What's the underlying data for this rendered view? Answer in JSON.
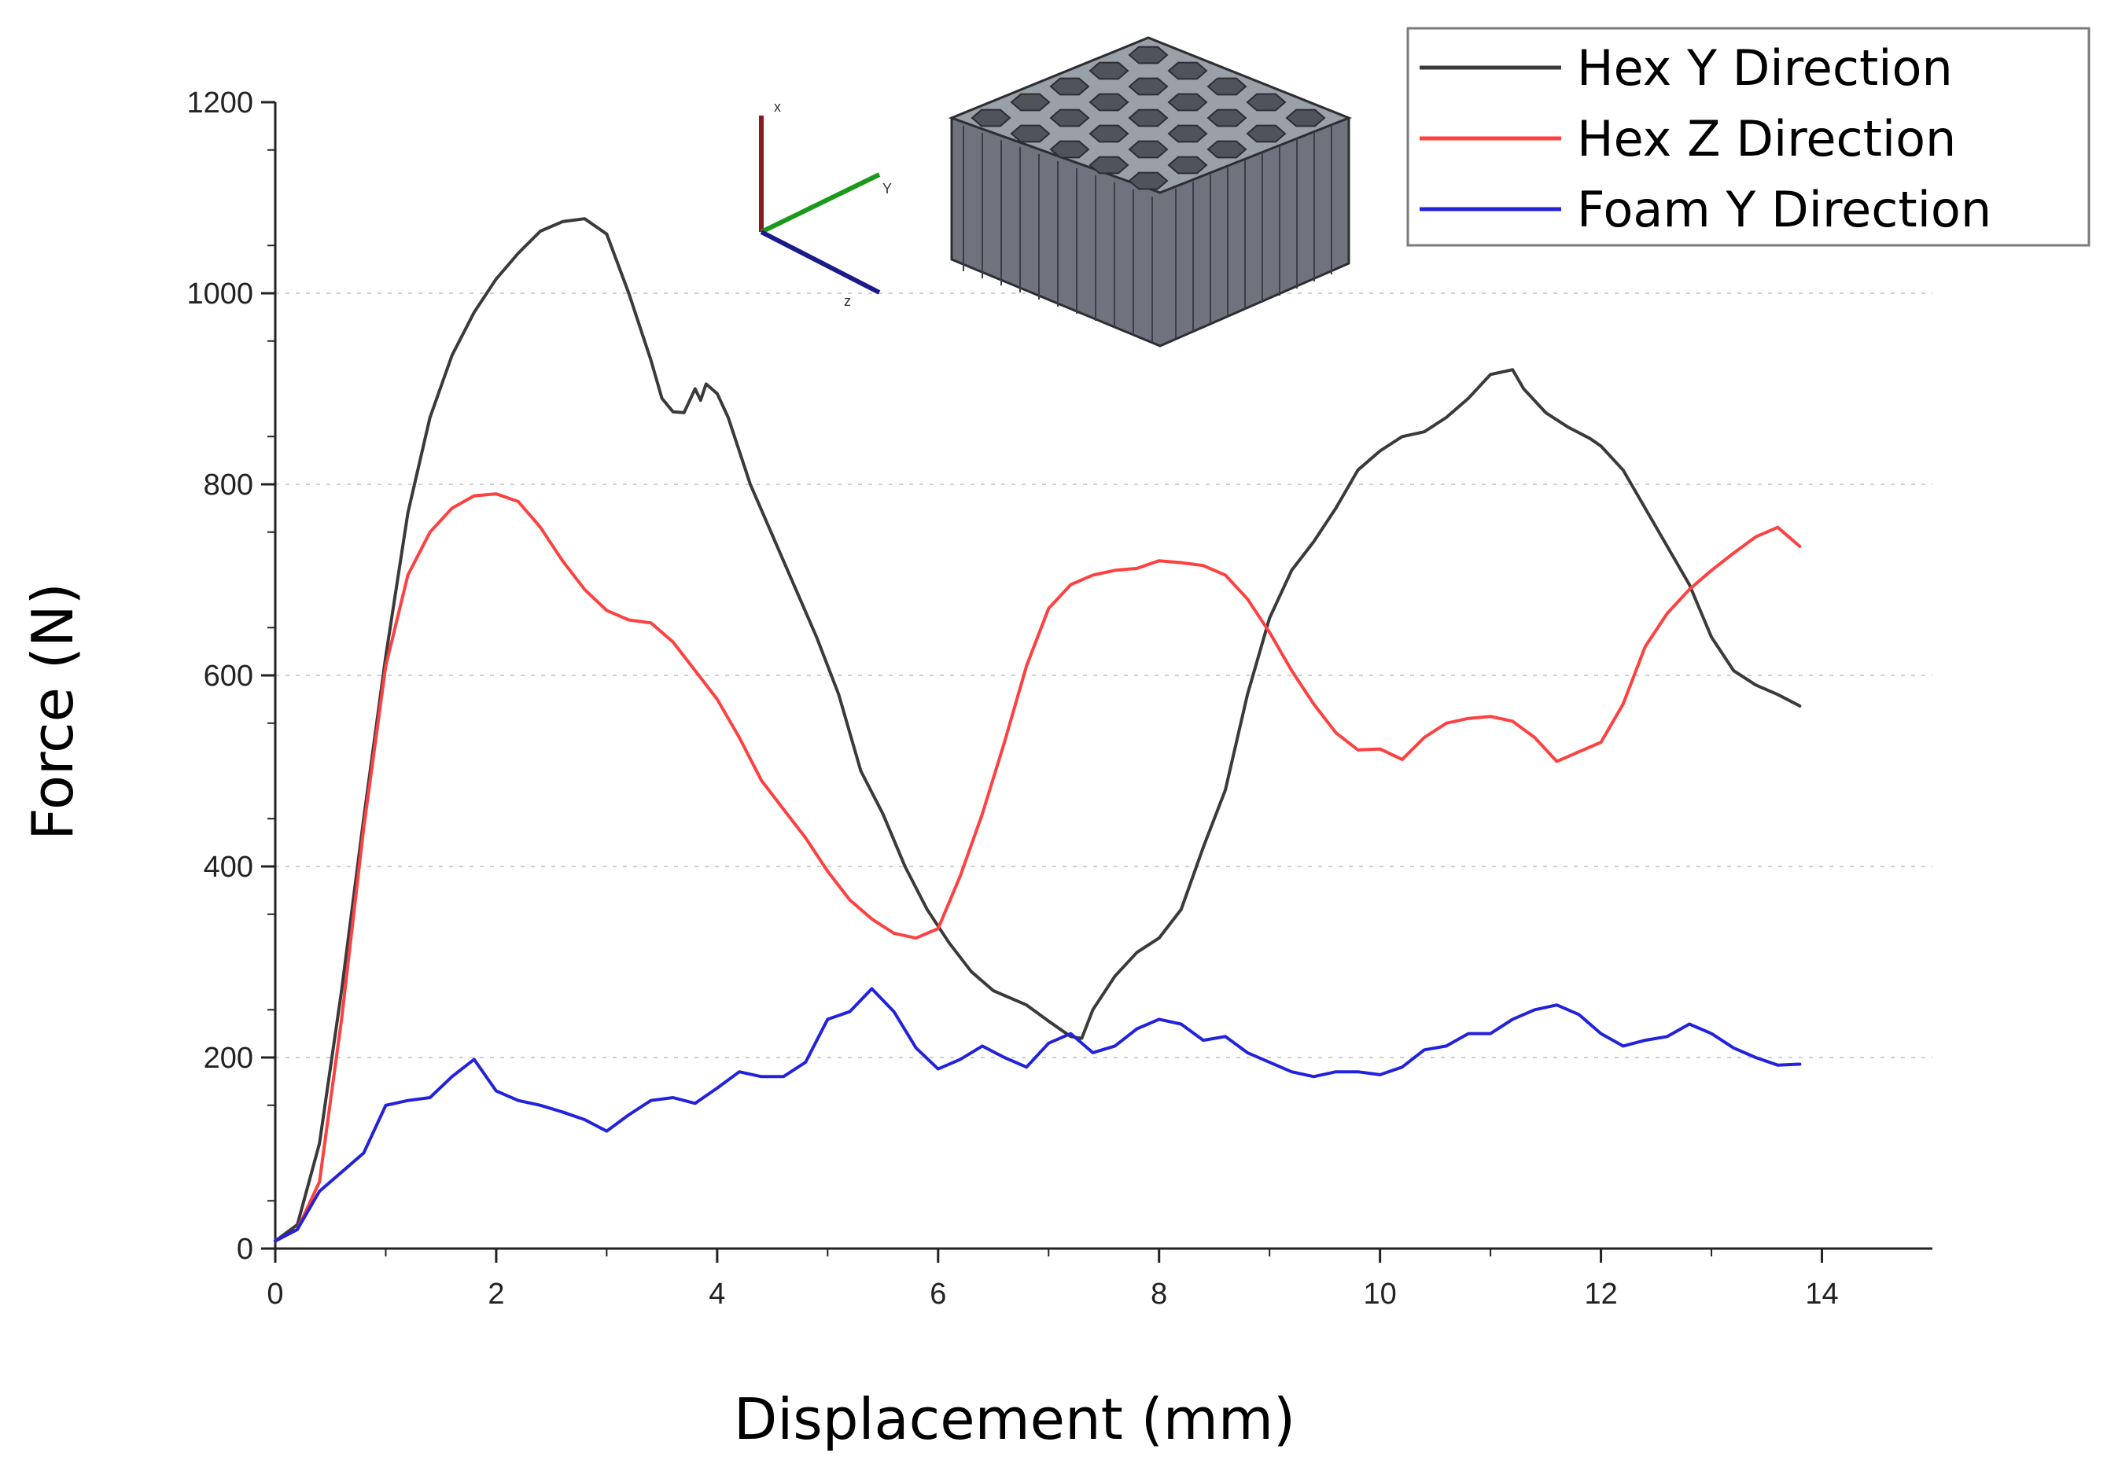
{
  "chart_data": {
    "type": "line",
    "xlabel": "Displacement (mm)",
    "ylabel": "Force (N)",
    "xlim": [
      0,
      15
    ],
    "ylim": [
      0,
      1200
    ],
    "x_ticks": [
      "0",
      "2",
      "4",
      "6",
      "8",
      "10",
      "12",
      "14"
    ],
    "y_ticks": [
      "0",
      "200",
      "400",
      "600",
      "800",
      "1000",
      "1200"
    ],
    "grid": "horizontal-dotted",
    "legend_position": "top-right",
    "series": [
      {
        "name": "Hex Y Direction",
        "color": "#3a3a3a",
        "points": [
          [
            0,
            8
          ],
          [
            0.2,
            25
          ],
          [
            0.4,
            110
          ],
          [
            0.6,
            270
          ],
          [
            0.8,
            450
          ],
          [
            1.0,
            620
          ],
          [
            1.2,
            770
          ],
          [
            1.4,
            870
          ],
          [
            1.6,
            935
          ],
          [
            1.8,
            980
          ],
          [
            2.0,
            1015
          ],
          [
            2.2,
            1042
          ],
          [
            2.4,
            1065
          ],
          [
            2.6,
            1075
          ],
          [
            2.8,
            1078
          ],
          [
            3.0,
            1062
          ],
          [
            3.2,
            1000
          ],
          [
            3.4,
            930
          ],
          [
            3.5,
            890
          ],
          [
            3.6,
            876
          ],
          [
            3.7,
            875
          ],
          [
            3.8,
            900
          ],
          [
            3.85,
            888
          ],
          [
            3.9,
            905
          ],
          [
            4.0,
            895
          ],
          [
            4.1,
            870
          ],
          [
            4.3,
            800
          ],
          [
            4.6,
            720
          ],
          [
            4.9,
            640
          ],
          [
            5.1,
            580
          ],
          [
            5.3,
            500
          ],
          [
            5.5,
            455
          ],
          [
            5.7,
            400
          ],
          [
            5.9,
            355
          ],
          [
            6.1,
            320
          ],
          [
            6.3,
            290
          ],
          [
            6.5,
            270
          ],
          [
            6.8,
            255
          ],
          [
            7.0,
            238
          ],
          [
            7.2,
            222
          ],
          [
            7.3,
            220
          ],
          [
            7.4,
            250
          ],
          [
            7.6,
            285
          ],
          [
            7.8,
            310
          ],
          [
            8.0,
            325
          ],
          [
            8.2,
            355
          ],
          [
            8.4,
            420
          ],
          [
            8.6,
            480
          ],
          [
            8.8,
            580
          ],
          [
            9.0,
            660
          ],
          [
            9.2,
            710
          ],
          [
            9.4,
            740
          ],
          [
            9.6,
            775
          ],
          [
            9.8,
            815
          ],
          [
            10.0,
            835
          ],
          [
            10.2,
            850
          ],
          [
            10.4,
            855
          ],
          [
            10.6,
            870
          ],
          [
            10.8,
            890
          ],
          [
            11.0,
            915
          ],
          [
            11.2,
            920
          ],
          [
            11.3,
            900
          ],
          [
            11.5,
            875
          ],
          [
            11.7,
            860
          ],
          [
            11.9,
            848
          ],
          [
            12.0,
            840
          ],
          [
            12.2,
            815
          ],
          [
            12.4,
            775
          ],
          [
            12.6,
            735
          ],
          [
            12.8,
            695
          ],
          [
            13.0,
            640
          ],
          [
            13.2,
            605
          ],
          [
            13.4,
            590
          ],
          [
            13.6,
            580
          ],
          [
            13.8,
            568
          ]
        ]
      },
      {
        "name": "Hex Z Direction",
        "color": "#ff4040",
        "points": [
          [
            0,
            8
          ],
          [
            0.2,
            20
          ],
          [
            0.4,
            70
          ],
          [
            0.6,
            240
          ],
          [
            0.8,
            440
          ],
          [
            1.0,
            610
          ],
          [
            1.2,
            705
          ],
          [
            1.4,
            750
          ],
          [
            1.6,
            775
          ],
          [
            1.8,
            788
          ],
          [
            2.0,
            790
          ],
          [
            2.2,
            782
          ],
          [
            2.4,
            755
          ],
          [
            2.6,
            720
          ],
          [
            2.8,
            690
          ],
          [
            3.0,
            668
          ],
          [
            3.2,
            658
          ],
          [
            3.4,
            655
          ],
          [
            3.6,
            635
          ],
          [
            3.8,
            605
          ],
          [
            4.0,
            575
          ],
          [
            4.2,
            535
          ],
          [
            4.4,
            490
          ],
          [
            4.6,
            460
          ],
          [
            4.8,
            430
          ],
          [
            5.0,
            395
          ],
          [
            5.2,
            365
          ],
          [
            5.4,
            345
          ],
          [
            5.6,
            330
          ],
          [
            5.8,
            325
          ],
          [
            6.0,
            335
          ],
          [
            6.2,
            390
          ],
          [
            6.4,
            455
          ],
          [
            6.6,
            530
          ],
          [
            6.8,
            610
          ],
          [
            7.0,
            670
          ],
          [
            7.2,
            695
          ],
          [
            7.4,
            705
          ],
          [
            7.6,
            710
          ],
          [
            7.8,
            712
          ],
          [
            8.0,
            720
          ],
          [
            8.2,
            718
          ],
          [
            8.4,
            715
          ],
          [
            8.6,
            705
          ],
          [
            8.8,
            680
          ],
          [
            9.0,
            645
          ],
          [
            9.2,
            605
          ],
          [
            9.4,
            570
          ],
          [
            9.6,
            540
          ],
          [
            9.8,
            522
          ],
          [
            10.0,
            523
          ],
          [
            10.2,
            512
          ],
          [
            10.4,
            535
          ],
          [
            10.6,
            550
          ],
          [
            10.8,
            555
          ],
          [
            11.0,
            557
          ],
          [
            11.2,
            552
          ],
          [
            11.4,
            535
          ],
          [
            11.6,
            510
          ],
          [
            11.8,
            520
          ],
          [
            12.0,
            530
          ],
          [
            12.2,
            570
          ],
          [
            12.4,
            630
          ],
          [
            12.6,
            665
          ],
          [
            12.8,
            690
          ],
          [
            13.0,
            710
          ],
          [
            13.2,
            728
          ],
          [
            13.4,
            745
          ],
          [
            13.6,
            755
          ],
          [
            13.8,
            735
          ]
        ]
      },
      {
        "name": "Foam Y Direction",
        "color": "#2222dd",
        "points": [
          [
            0,
            8
          ],
          [
            0.2,
            20
          ],
          [
            0.4,
            60
          ],
          [
            0.6,
            80
          ],
          [
            0.8,
            100
          ],
          [
            1.0,
            150
          ],
          [
            1.2,
            155
          ],
          [
            1.4,
            158
          ],
          [
            1.6,
            180
          ],
          [
            1.8,
            198
          ],
          [
            2.0,
            165
          ],
          [
            2.2,
            155
          ],
          [
            2.4,
            150
          ],
          [
            2.6,
            143
          ],
          [
            2.8,
            135
          ],
          [
            3.0,
            123
          ],
          [
            3.2,
            140
          ],
          [
            3.4,
            155
          ],
          [
            3.6,
            158
          ],
          [
            3.8,
            152
          ],
          [
            4.0,
            168
          ],
          [
            4.2,
            185
          ],
          [
            4.4,
            180
          ],
          [
            4.6,
            180
          ],
          [
            4.8,
            195
          ],
          [
            5.0,
            240
          ],
          [
            5.2,
            248
          ],
          [
            5.4,
            272
          ],
          [
            5.6,
            248
          ],
          [
            5.8,
            210
          ],
          [
            6.0,
            188
          ],
          [
            6.2,
            198
          ],
          [
            6.4,
            212
          ],
          [
            6.6,
            200
          ],
          [
            6.8,
            190
          ],
          [
            7.0,
            215
          ],
          [
            7.2,
            225
          ],
          [
            7.4,
            205
          ],
          [
            7.6,
            212
          ],
          [
            7.8,
            230
          ],
          [
            8.0,
            240
          ],
          [
            8.2,
            235
          ],
          [
            8.4,
            218
          ],
          [
            8.6,
            222
          ],
          [
            8.8,
            205
          ],
          [
            9.0,
            195
          ],
          [
            9.2,
            185
          ],
          [
            9.4,
            180
          ],
          [
            9.6,
            185
          ],
          [
            9.8,
            185
          ],
          [
            10.0,
            182
          ],
          [
            10.2,
            190
          ],
          [
            10.4,
            208
          ],
          [
            10.6,
            212
          ],
          [
            10.8,
            225
          ],
          [
            11.0,
            225
          ],
          [
            11.2,
            240
          ],
          [
            11.4,
            250
          ],
          [
            11.6,
            255
          ],
          [
            11.8,
            245
          ],
          [
            12.0,
            225
          ],
          [
            12.2,
            212
          ],
          [
            12.4,
            218
          ],
          [
            12.6,
            222
          ],
          [
            12.8,
            235
          ],
          [
            13.0,
            225
          ],
          [
            13.2,
            210
          ],
          [
            13.4,
            200
          ],
          [
            13.6,
            192
          ],
          [
            13.8,
            193
          ]
        ]
      }
    ]
  },
  "inset": {
    "axis_labels": {
      "x": "x",
      "y": "Y",
      "z": "z"
    },
    "axis_colors": {
      "x": "#8b1a1a",
      "y": "#1a9a1a",
      "z": "#1a1a8b"
    },
    "model_name": "hexagonal-honeycomb-model",
    "model_color": "#6e737d"
  }
}
